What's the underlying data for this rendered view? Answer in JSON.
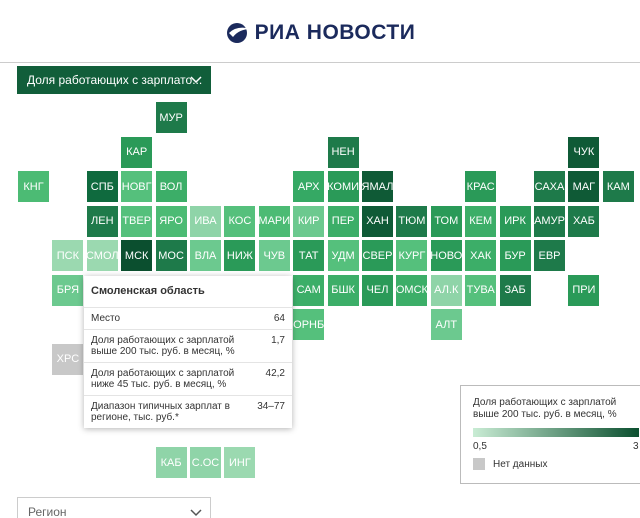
{
  "header": {
    "logo": "РИА НОВОСТИ"
  },
  "metric_select": {
    "label": "Доля работающих с зарплато..."
  },
  "tiles": [
    {
      "label": "МУР",
      "color": "#1e7a4a"
    },
    {
      "label": "КАР",
      "color": "#2a9a58"
    },
    {
      "label": "НЕН",
      "color": "#1e7a4a"
    },
    {
      "label": "ЧУК",
      "color": "#0f5a36"
    },
    {
      "label": "КНГ",
      "color": "#4cbb74"
    },
    {
      "label": "СПБ",
      "color": "#0f6a3e"
    },
    {
      "label": "НОВГ",
      "color": "#55c07c"
    },
    {
      "label": "ВОЛ",
      "color": "#3cae68"
    },
    {
      "label": "АРХ",
      "color": "#35a964"
    },
    {
      "label": "КОМИ",
      "color": "#2a9a58"
    },
    {
      "label": "ЯМАЛ",
      "color": "#0f5a36"
    },
    {
      "label": "КРАС",
      "color": "#2a9a58"
    },
    {
      "label": "САХА",
      "color": "#1e7a4a"
    },
    {
      "label": "МАГ",
      "color": "#0f5a36"
    },
    {
      "label": "КАМ",
      "color": "#1e7a4a"
    },
    {
      "label": "ЛЕН",
      "color": "#1e7a4a"
    },
    {
      "label": "ТВЕР",
      "color": "#55c07c"
    },
    {
      "label": "ЯРО",
      "color": "#4cbb74"
    },
    {
      "label": "ИВА",
      "color": "#8fd4a8"
    },
    {
      "label": "КОС",
      "color": "#55c07c"
    },
    {
      "label": "МАРИ",
      "color": "#4cbb74"
    },
    {
      "label": "КИР",
      "color": "#6cc98f"
    },
    {
      "label": "ПЕР",
      "color": "#3cae68"
    },
    {
      "label": "ХАН",
      "color": "#0f5a36"
    },
    {
      "label": "ТЮМ",
      "color": "#1e7a4a"
    },
    {
      "label": "ТОМ",
      "color": "#2a9a58"
    },
    {
      "label": "КЕМ",
      "color": "#3cae68"
    },
    {
      "label": "ИРК",
      "color": "#2a9a58"
    },
    {
      "label": "АМУР",
      "color": "#1e7a4a"
    },
    {
      "label": "ХАБ",
      "color": "#1e7a4a"
    },
    {
      "label": "ПСК",
      "color": "#9bd9b0"
    },
    {
      "label": "СМОЛ",
      "color": "#9bd9b0"
    },
    {
      "label": "МСК",
      "color": "#0b4f2f"
    },
    {
      "label": "МОС",
      "color": "#1e7a4a"
    },
    {
      "label": "ВЛА",
      "color": "#6cc98f"
    },
    {
      "label": "НИЖ",
      "color": "#2a9a58"
    },
    {
      "label": "ЧУВ",
      "color": "#6cc98f"
    },
    {
      "label": "ТАТ",
      "color": "#2a9a58"
    },
    {
      "label": "УДМ",
      "color": "#55c07c"
    },
    {
      "label": "СВЕР",
      "color": "#2a9a58"
    },
    {
      "label": "КУРГ",
      "color": "#55c07c"
    },
    {
      "label": "НОВО",
      "color": "#2a9a58"
    },
    {
      "label": "ХАК",
      "color": "#3cae68"
    },
    {
      "label": "БУР",
      "color": "#2a9a58"
    },
    {
      "label": "ЕВР",
      "color": "#1e7a4a"
    },
    {
      "label": "БРЯ",
      "color": "#6cc98f"
    },
    {
      "label": "САМ",
      "color": "#3cae68"
    },
    {
      "label": "БШК",
      "color": "#3cae68"
    },
    {
      "label": "ЧЕЛ",
      "color": "#2a9a58"
    },
    {
      "label": "ОМСК",
      "color": "#3cae68"
    },
    {
      "label": "АЛ.К",
      "color": "#8fd4a8"
    },
    {
      "label": "ТУВА",
      "color": "#55c07c"
    },
    {
      "label": "ЗАБ",
      "color": "#1e7a4a"
    },
    {
      "label": "ПРИ",
      "color": "#2a9a58"
    },
    {
      "label": "ОРНБ",
      "color": "#55c07c"
    },
    {
      "label": "АЛТ",
      "color": "#6cc98f"
    },
    {
      "label": "ХРС",
      "color": "#c8c8c8"
    },
    {
      "label": "КАБ",
      "color": "#8fd4a8"
    },
    {
      "label": "С.ОС",
      "color": "#8fd4a8"
    },
    {
      "label": "ИНГ",
      "color": "#9bd9b0"
    }
  ],
  "tooltip": {
    "title": "Смоленская область",
    "rows": [
      [
        "Место",
        "64"
      ],
      [
        "Доля работающих с зарплатой выше 200 тыс. руб. в месяц, %",
        "1,7"
      ],
      [
        "Доля работающих с зарплатой ниже 45 тыс. руб. в месяц, %",
        "42,2"
      ],
      [
        "Диапазон типичных зарплат в регионе, тыс. руб.*",
        "34–77"
      ]
    ]
  },
  "legend": {
    "title": "Доля работающих с зарплатой выше 200 тыс. руб. в месяц, %",
    "min": "0,5",
    "max": "3",
    "no_data": "Нет данных",
    "color_from": "#c9ecd4",
    "color_to": "#0b4f2f",
    "no_data_color": "#c8c8c8"
  },
  "region_select": {
    "label": "Регион"
  }
}
